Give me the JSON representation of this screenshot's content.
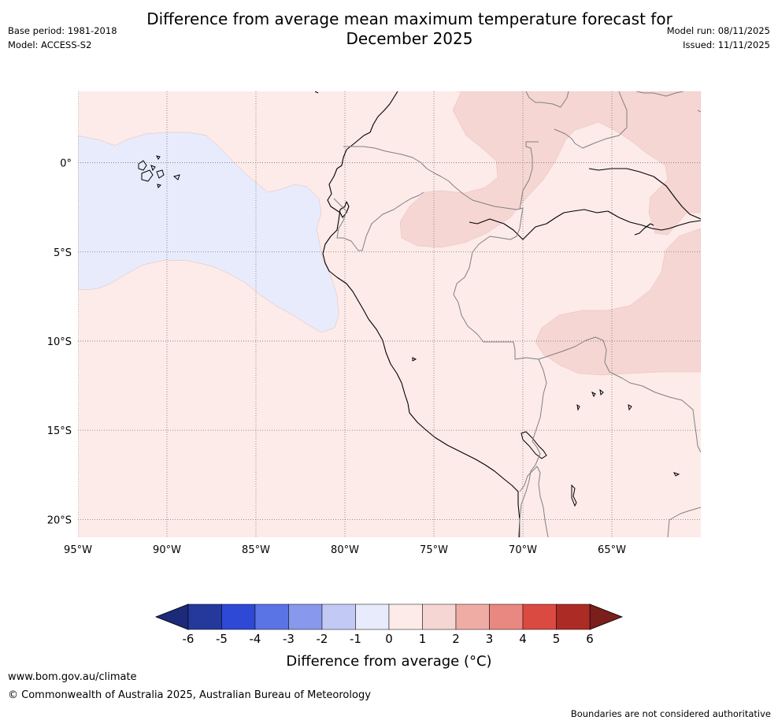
{
  "title_line1": "Difference from average mean maximum temperature forecast for",
  "title_line2": "December 2025",
  "base_period": "Base period: 1981-2018",
  "model": "Model: ACCESS-S2",
  "model_run": "Model run: 08/11/2025",
  "issued": "Issued: 11/11/2025",
  "map": {
    "longitude_range": [
      -95,
      -60
    ],
    "latitude_range": [
      -21,
      4
    ],
    "lon_ticks": [
      {
        "value": -95,
        "label": "95°W"
      },
      {
        "value": -90,
        "label": "90°W"
      },
      {
        "value": -85,
        "label": "85°W"
      },
      {
        "value": -80,
        "label": "80°W"
      },
      {
        "value": -75,
        "label": "75°W"
      },
      {
        "value": -70,
        "label": "70°W"
      },
      {
        "value": -65,
        "label": "65°W"
      }
    ],
    "lat_ticks": [
      {
        "value": 0,
        "label": "0°"
      },
      {
        "value": -5,
        "label": "5°S"
      },
      {
        "value": -10,
        "label": "10°S"
      },
      {
        "value": -15,
        "label": "15°S"
      },
      {
        "value": -20,
        "label": "20°S"
      }
    ],
    "regions": [
      {
        "name": "Pacific west of Galapagos",
        "category": "-1 to 0"
      },
      {
        "name": "Peru coast and ocean",
        "category": "0 to 1"
      },
      {
        "name": "Northern Amazon",
        "category": "1 to 2"
      },
      {
        "name": "Eastern Amazon",
        "category": "1 to 2"
      },
      {
        "name": "Southern Amazon",
        "category": "1 to 2"
      }
    ]
  },
  "colorbar": {
    "ticks": [
      "-6",
      "-5",
      "-4",
      "-3",
      "-2",
      "-1",
      "0",
      "1",
      "2",
      "3",
      "4",
      "5",
      "6"
    ],
    "colors": [
      "#25399c",
      "#2e49d6",
      "#5a74e6",
      "#8898ec",
      "#c3c9f5",
      "#e8ebfb",
      "#fcebe8",
      "#f5d6d3",
      "#efaca5",
      "#e88880",
      "#da4a40",
      "#ad2b25"
    ],
    "under_color": "#1c2a7a",
    "over_color": "#7a1f1c",
    "label": "Difference from average (°C)"
  },
  "footer": {
    "url": "www.bom.gov.au/climate",
    "copyright": "© Commonwealth of Australia 2025, Australian Bureau of Meteorology",
    "disclaimer": "Boundaries are not considered authoritative"
  }
}
